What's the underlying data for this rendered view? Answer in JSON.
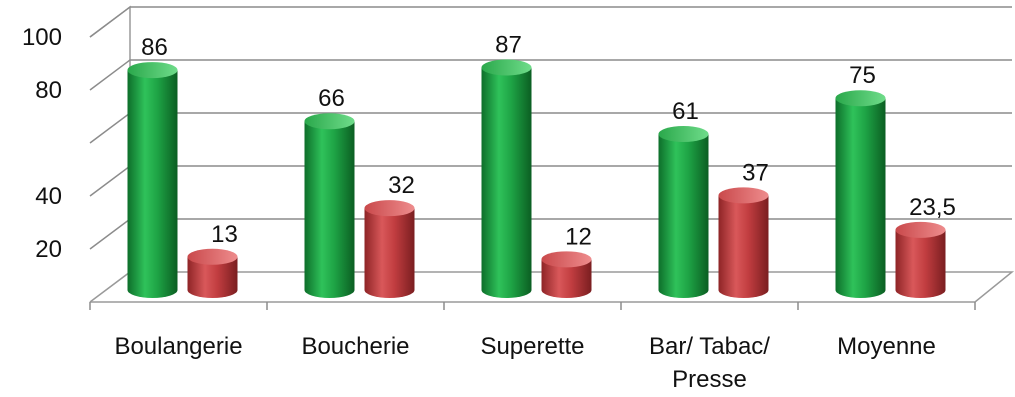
{
  "chart_data": {
    "type": "bar",
    "categories": [
      [
        "Boulangerie"
      ],
      [
        "Boucherie"
      ],
      [
        "Superette"
      ],
      [
        "Bar/ Tabac/",
        "Presse"
      ],
      [
        "Moyenne"
      ]
    ],
    "series": [
      {
        "values": [
          86,
          66,
          87,
          61,
          75
        ],
        "labels": [
          "86",
          "66",
          "87",
          "61",
          "75"
        ],
        "color": "#1a9a3e"
      },
      {
        "values": [
          13,
          32,
          12,
          37,
          23.5
        ],
        "labels": [
          "13",
          "32",
          "12",
          "37",
          "23,5"
        ],
        "color": "#c0393b"
      }
    ],
    "ylim": [
      0,
      100
    ],
    "yticks": [
      20,
      40,
      80,
      100
    ],
    "grid": true
  }
}
